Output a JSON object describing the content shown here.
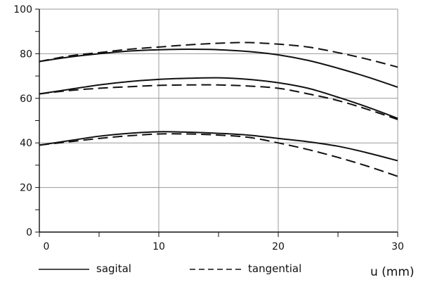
{
  "chart_data": {
    "type": "line",
    "title": "",
    "xlabel": "u (mm)",
    "ylabel": "",
    "xlim": [
      0,
      30
    ],
    "ylim": [
      0,
      100
    ],
    "xticks": [
      0,
      10,
      20,
      30
    ],
    "yticks": [
      0,
      20,
      40,
      60,
      80,
      100
    ],
    "grid": true,
    "legend": {
      "placement": "bottom",
      "entries": [
        {
          "label": "sagital",
          "style": "solid"
        },
        {
          "label": "tangential",
          "style": "dashed"
        }
      ]
    },
    "series": [
      {
        "group": 1,
        "name": "sagital",
        "style": "solid",
        "x": [
          0,
          2.5,
          5,
          7.5,
          10,
          12.5,
          15,
          17.5,
          20,
          22.5,
          25,
          27.5,
          30
        ],
        "y": [
          76.5,
          78.5,
          80,
          81.2,
          81.8,
          82,
          81.8,
          81,
          79.5,
          77,
          73.5,
          69.5,
          65
        ]
      },
      {
        "group": 1,
        "name": "tangential",
        "style": "dashed",
        "x": [
          0,
          2.5,
          5,
          7.5,
          10,
          12.5,
          15,
          17.5,
          20,
          22.5,
          25,
          27.5,
          30
        ],
        "y": [
          76.5,
          79,
          80.5,
          82,
          83,
          84,
          84.7,
          85,
          84.3,
          83,
          80.5,
          77.5,
          74
        ]
      },
      {
        "group": 2,
        "name": "sagital",
        "style": "solid",
        "x": [
          0,
          2.5,
          5,
          7.5,
          10,
          12.5,
          15,
          17.5,
          20,
          22.5,
          25,
          27.5,
          30
        ],
        "y": [
          62,
          64,
          66,
          67.5,
          68.5,
          69,
          69.2,
          68.5,
          67,
          64.5,
          60.5,
          56,
          51
        ]
      },
      {
        "group": 2,
        "name": "tangential",
        "style": "dashed",
        "x": [
          0,
          2.5,
          5,
          7.5,
          10,
          12.5,
          15,
          17.5,
          20,
          22.5,
          25,
          27.5,
          30
        ],
        "y": [
          62,
          63.5,
          64.5,
          65.2,
          65.8,
          66,
          66,
          65.5,
          64.5,
          62,
          59,
          55,
          50.5
        ]
      },
      {
        "group": 3,
        "name": "sagital",
        "style": "solid",
        "x": [
          0,
          2.5,
          5,
          7.5,
          10,
          12.5,
          15,
          17.5,
          20,
          22.5,
          25,
          27.5,
          30
        ],
        "y": [
          39,
          41,
          43,
          44.3,
          45,
          44.8,
          44.3,
          43.5,
          42,
          40.5,
          38.5,
          35.5,
          32
        ]
      },
      {
        "group": 3,
        "name": "tangential",
        "style": "dashed",
        "x": [
          0,
          2.5,
          5,
          7.5,
          10,
          12.5,
          15,
          17.5,
          20,
          22.5,
          25,
          27.5,
          30
        ],
        "y": [
          39,
          40.5,
          42,
          43.2,
          44,
          44,
          43.5,
          42.5,
          40,
          37,
          33.5,
          29.5,
          25
        ]
      }
    ]
  }
}
